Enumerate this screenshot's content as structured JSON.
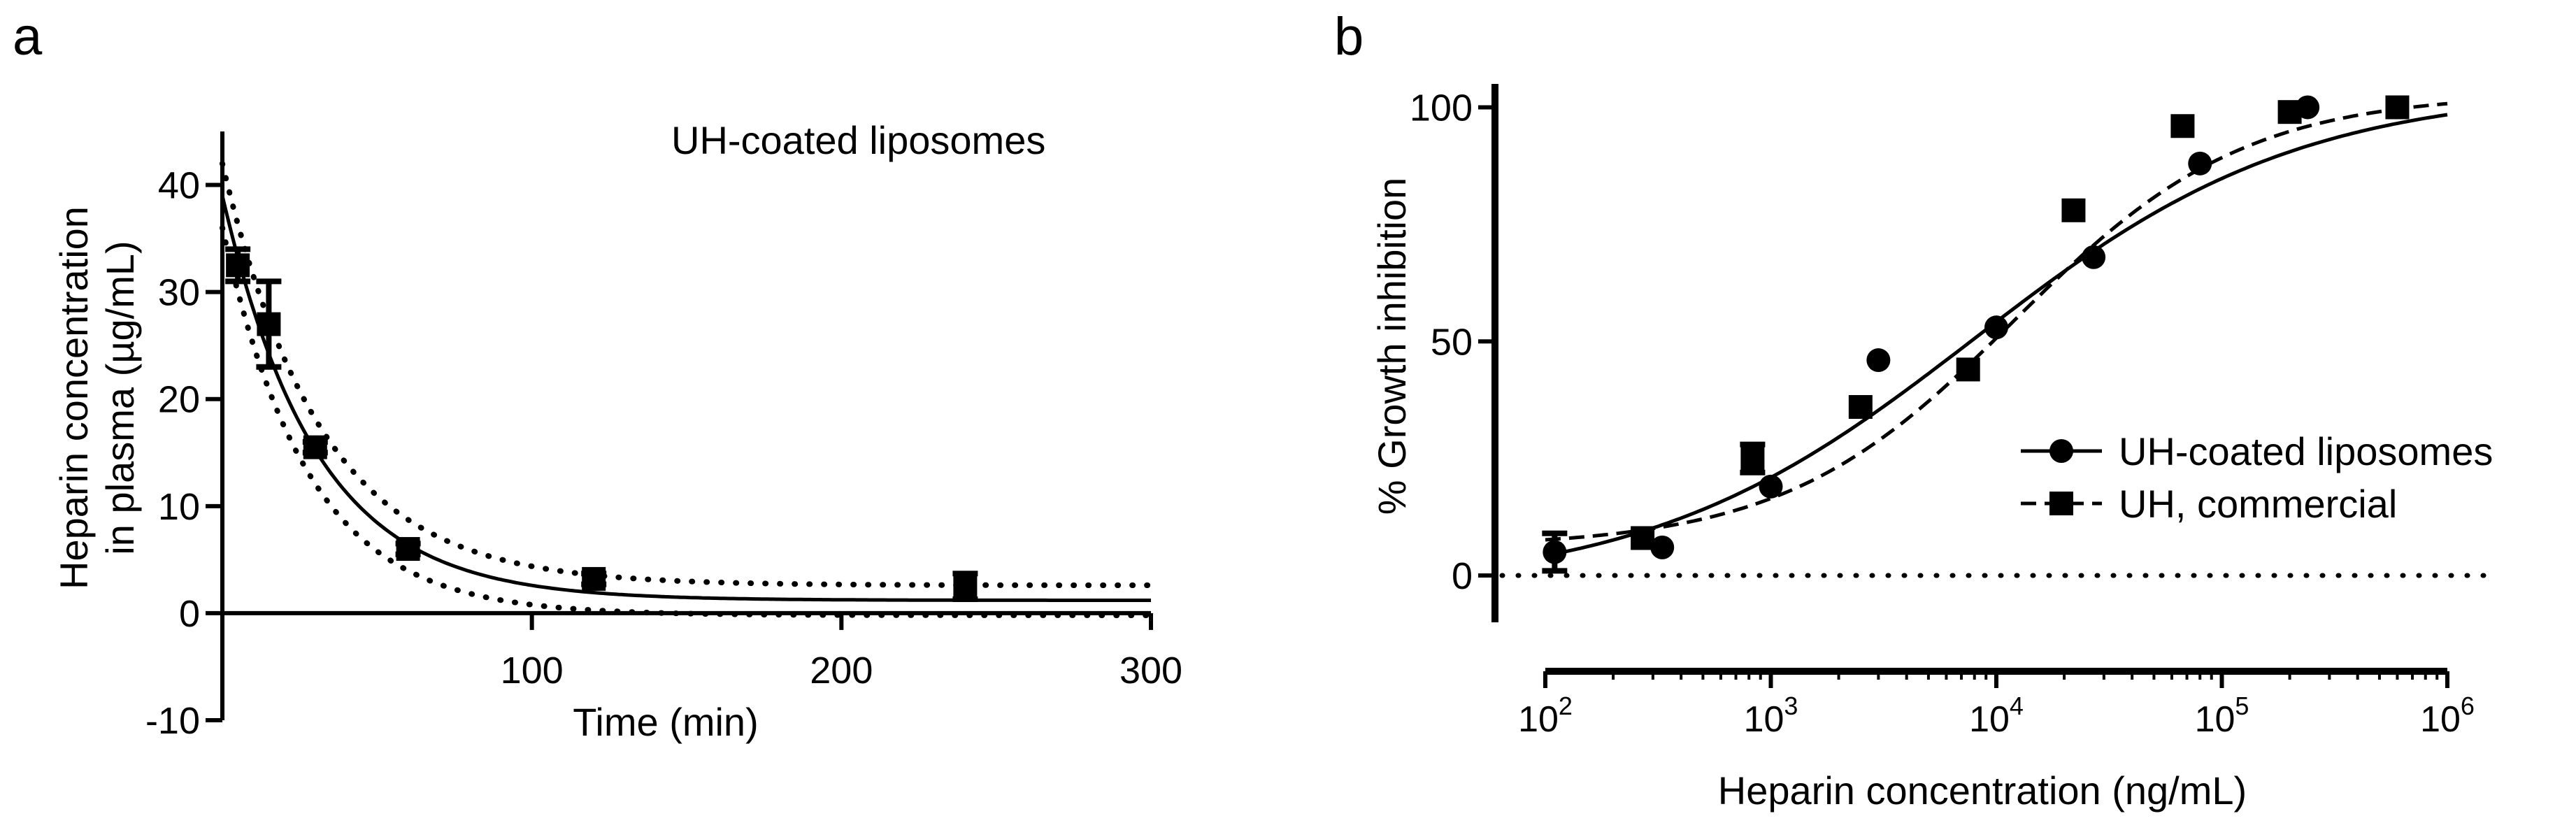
{
  "figure": {
    "panels": [
      "a",
      "b"
    ]
  },
  "chart_data": [
    {
      "panel": "a",
      "type": "scatter",
      "title": "UH-coated liposomes",
      "xlabel": "Time (min)",
      "ylabel": [
        "Heparin concentration",
        "in plasma (µg/mL)"
      ],
      "xlim": [
        0,
        300
      ],
      "ylim": [
        -10,
        45
      ],
      "xticks": [
        100,
        200,
        300
      ],
      "yticks": [
        -10,
        0,
        10,
        20,
        30,
        40
      ],
      "grid": false,
      "series": [
        {
          "points": [
            {
              "x": 5,
              "y": 32.5,
              "err": 1.5
            },
            {
              "x": 15,
              "y": 27,
              "err": 4
            },
            {
              "x": 30,
              "y": 15.5,
              "err": 0.5
            },
            {
              "x": 60,
              "y": 6,
              "err": 0.5
            },
            {
              "x": 120,
              "y": 3.2,
              "err": 0.5
            },
            {
              "x": 240,
              "y": 2.5,
              "err": 1.2
            }
          ],
          "marker": "square",
          "color": "#000000"
        }
      ],
      "fit": {
        "type": "one-phase-decay",
        "y0": 39,
        "plateau": 1.2,
        "k": 0.033,
        "line": "solid"
      },
      "confidence_band": {
        "upper": {
          "y0": 42,
          "plateau": 2.6,
          "k": 0.031
        },
        "lower": {
          "y0": 36,
          "plateau": -0.2,
          "k": 0.036
        },
        "line": "dotted"
      }
    },
    {
      "panel": "b",
      "type": "scatter",
      "xlabel": "Heparin concentration (ng/mL)",
      "ylabel": "% Growth inhibition",
      "xscale": "log",
      "xlim": [
        100,
        1000000
      ],
      "ylim": [
        -10,
        105
      ],
      "xticks": [
        {
          "base": "10",
          "exp": "2",
          "value": 100
        },
        {
          "base": "10",
          "exp": "3",
          "value": 1000
        },
        {
          "base": "10",
          "exp": "4",
          "value": 10000
        },
        {
          "base": "10",
          "exp": "5",
          "value": 100000
        },
        {
          "base": "10",
          "exp": "6",
          "value": 1000000
        }
      ],
      "yticks": [
        0,
        50,
        100
      ],
      "reference_line": {
        "y": 0,
        "style": "dotted"
      },
      "legend_position": "right",
      "grid": false,
      "series": [
        {
          "name": "UH-coated liposomes",
          "marker": "circle",
          "line": "solid",
          "points": [
            {
              "x": 110,
              "y": 5,
              "err": 4
            },
            {
              "x": 330,
              "y": 6
            },
            {
              "x": 1000,
              "y": 19
            },
            {
              "x": 3000,
              "y": 46
            },
            {
              "x": 10000,
              "y": 53
            },
            {
              "x": 27000,
              "y": 68
            },
            {
              "x": 80000,
              "y": 88
            },
            {
              "x": 240000,
              "y": 100
            }
          ],
          "fit": {
            "bottom": -3,
            "top": 104,
            "logEC50": 3.9,
            "hill": 0.6
          }
        },
        {
          "name": "UH, commercial",
          "marker": "square",
          "line": "dashed",
          "points": [
            {
              "x": 270,
              "y": 8
            },
            {
              "x": 830,
              "y": 25,
              "err": 3
            },
            {
              "x": 2500,
              "y": 36
            },
            {
              "x": 7500,
              "y": 44
            },
            {
              "x": 22000,
              "y": 78
            },
            {
              "x": 67000,
              "y": 96
            },
            {
              "x": 200000,
              "y": 99
            },
            {
              "x": 600000,
              "y": 100
            }
          ],
          "fit": {
            "bottom": 6,
            "top": 103,
            "logEC50": 4.08,
            "hill": 0.85
          }
        }
      ]
    }
  ]
}
